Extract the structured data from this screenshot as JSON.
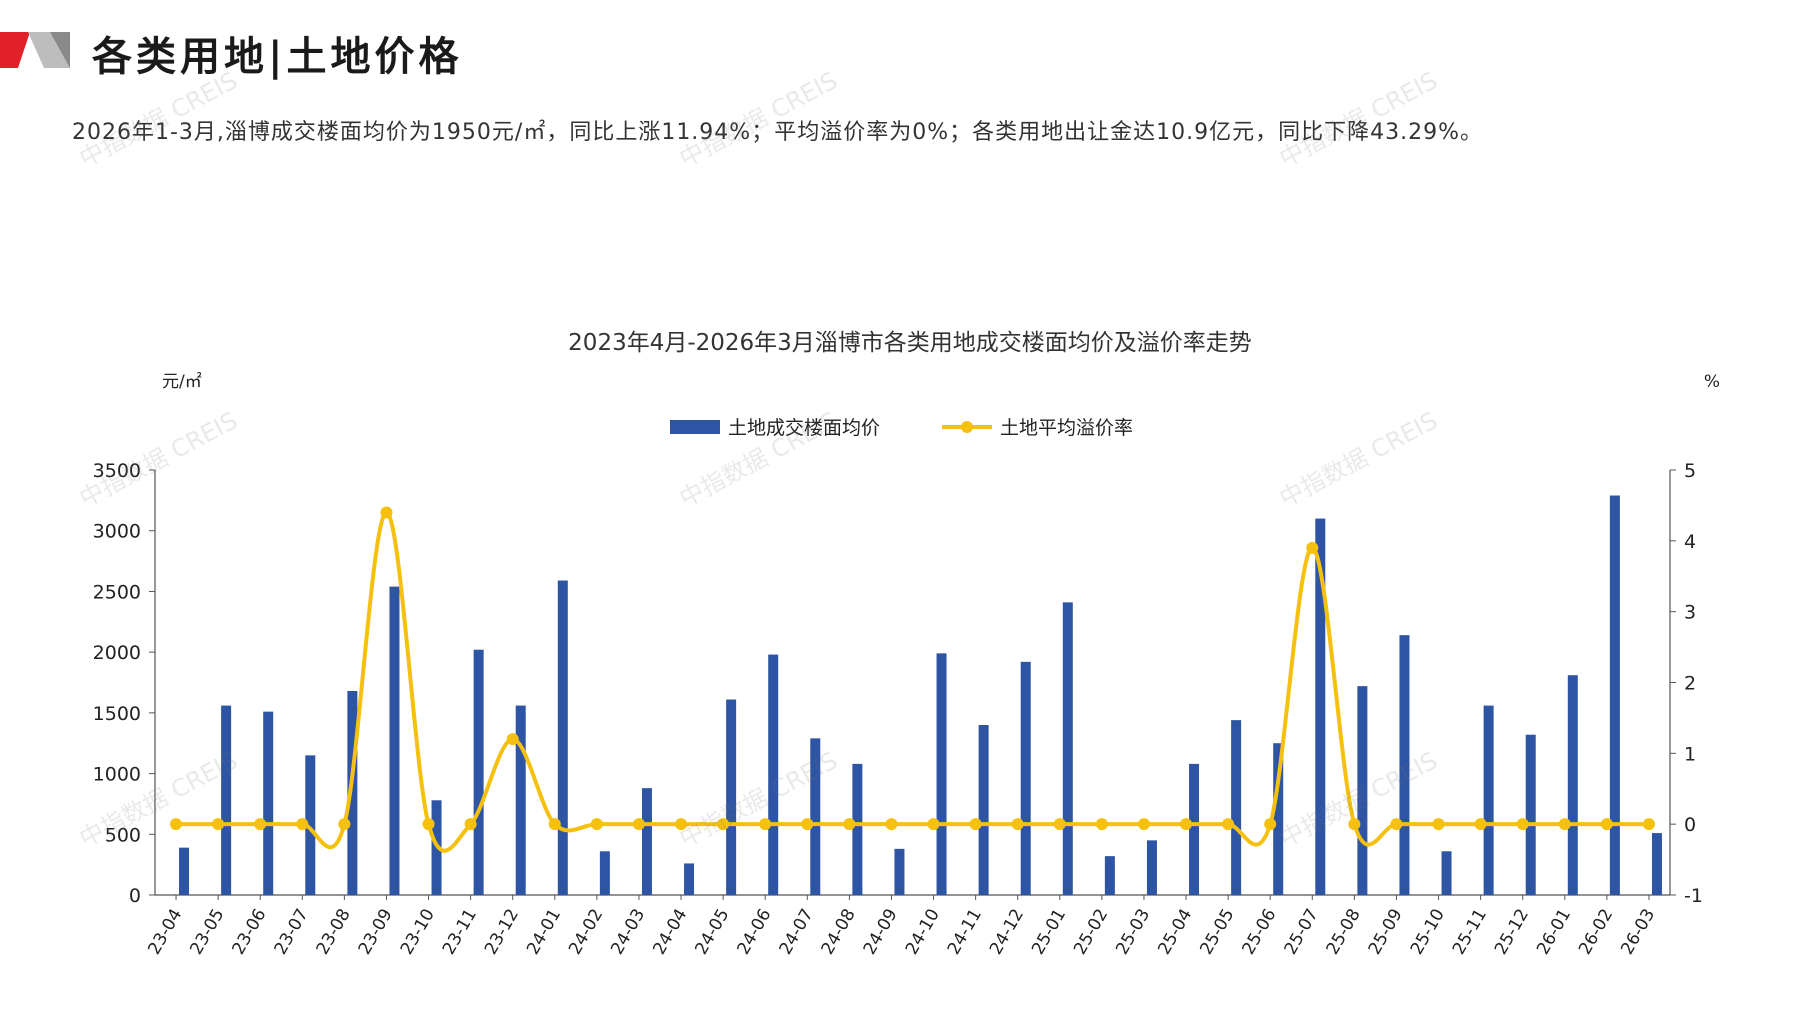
{
  "header": {
    "title": "各类用地|土地价格"
  },
  "summary": "2026年1-3月,淄博成交楼面均价为1950元/㎡，同比上涨11.94%；平均溢价率为0%；各类用地出让金达10.9亿元，同比下降43.29%。",
  "watermark": "中指数据 CREIS",
  "colors": {
    "bar": "#2e54a4",
    "line": "#f5c10e",
    "logo_red": "#e02127",
    "logo_gray": "#999999"
  },
  "chart_data": {
    "type": "bar",
    "title": "2023年4月-2026年3月淄博市各类用地成交楼面均价及溢价率走势",
    "y_left_unit": "元/㎡",
    "y_right_unit": "%",
    "y_left_lim": [
      0,
      3500
    ],
    "y_left_ticks": [
      "0",
      "500",
      "1000",
      "1500",
      "2000",
      "2500",
      "3000",
      "3500"
    ],
    "y_right_lim": [
      -1,
      5
    ],
    "y_right_ticks": [
      "-1",
      "0",
      "1",
      "2",
      "3",
      "4",
      "5"
    ],
    "legend_position": "top-center",
    "grid": false,
    "categories": [
      "23-04",
      "23-05",
      "23-06",
      "23-07",
      "23-08",
      "23-09",
      "23-10",
      "23-11",
      "23-12",
      "24-01",
      "24-02",
      "24-03",
      "24-04",
      "24-05",
      "24-06",
      "24-07",
      "24-08",
      "24-09",
      "24-10",
      "24-11",
      "24-12",
      "25-01",
      "25-02",
      "25-03",
      "25-04",
      "25-05",
      "25-06",
      "25-07",
      "25-08",
      "25-09",
      "25-10",
      "25-11",
      "25-12",
      "26-01",
      "26-02",
      "26-03"
    ],
    "series": [
      {
        "name": "土地成交楼面均价",
        "type": "bar",
        "axis": "left",
        "values": [
          390,
          1560,
          1510,
          1150,
          1680,
          2540,
          780,
          2020,
          1560,
          2590,
          360,
          880,
          260,
          1610,
          1980,
          1290,
          1080,
          380,
          1990,
          1400,
          1920,
          2410,
          320,
          450,
          1080,
          1440,
          1250,
          3100,
          1720,
          2140,
          360,
          1560,
          1320,
          1810,
          3290,
          510
        ]
      },
      {
        "name": "土地平均溢价率",
        "type": "line",
        "axis": "right",
        "values": [
          0,
          0,
          0,
          0,
          0,
          4.4,
          0,
          0,
          1.2,
          0,
          0,
          0,
          0,
          0,
          0,
          0,
          0,
          0,
          0,
          0,
          0,
          0,
          0,
          0,
          0,
          0,
          0,
          3.9,
          0,
          0,
          0,
          0,
          0,
          0,
          0,
          0
        ]
      }
    ]
  }
}
